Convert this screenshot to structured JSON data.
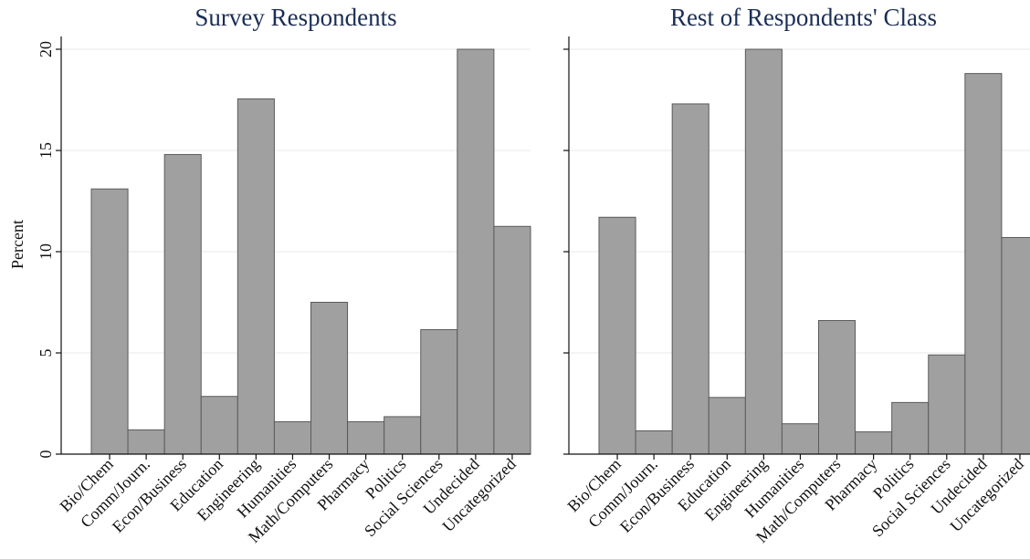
{
  "chart_data": [
    {
      "type": "bar",
      "title": "Survey Respondents",
      "xlabel": "",
      "ylabel": "Percent",
      "ylim": [
        0,
        20
      ],
      "yticks": [
        0,
        5,
        10,
        15,
        20
      ],
      "grid": true,
      "categories": [
        "Bio/Chem",
        "Comm/Journ.",
        "Econ/Business",
        "Education",
        "Engineering",
        "Humanities",
        "Math/Computers",
        "Pharmacy",
        "Politics",
        "Social Sciences",
        "Undecided",
        "Uncategorized"
      ],
      "values": [
        13.1,
        1.2,
        14.8,
        2.85,
        17.55,
        1.6,
        7.5,
        1.6,
        1.85,
        6.15,
        20.0,
        11.25
      ]
    },
    {
      "type": "bar",
      "title": "Rest of Respondents' Class",
      "xlabel": "",
      "ylabel": "",
      "ylim": [
        0,
        20
      ],
      "yticks": [
        0,
        5,
        10,
        15,
        20
      ],
      "grid": true,
      "categories": [
        "Bio/Chem",
        "Comm/Journ.",
        "Econ/Business",
        "Education",
        "Engineering",
        "Humanities",
        "Math/Computers",
        "Pharmacy",
        "Politics",
        "Social Sciences",
        "Undecided",
        "Uncategorized"
      ],
      "values": [
        11.7,
        1.15,
        17.3,
        2.8,
        20.0,
        1.5,
        6.6,
        1.1,
        2.55,
        4.9,
        18.8,
        10.7
      ]
    }
  ],
  "colors": {
    "bar_fill": "#a0a0a0",
    "bar_edge": "#5a5a5a",
    "title": "#1a2e55"
  }
}
